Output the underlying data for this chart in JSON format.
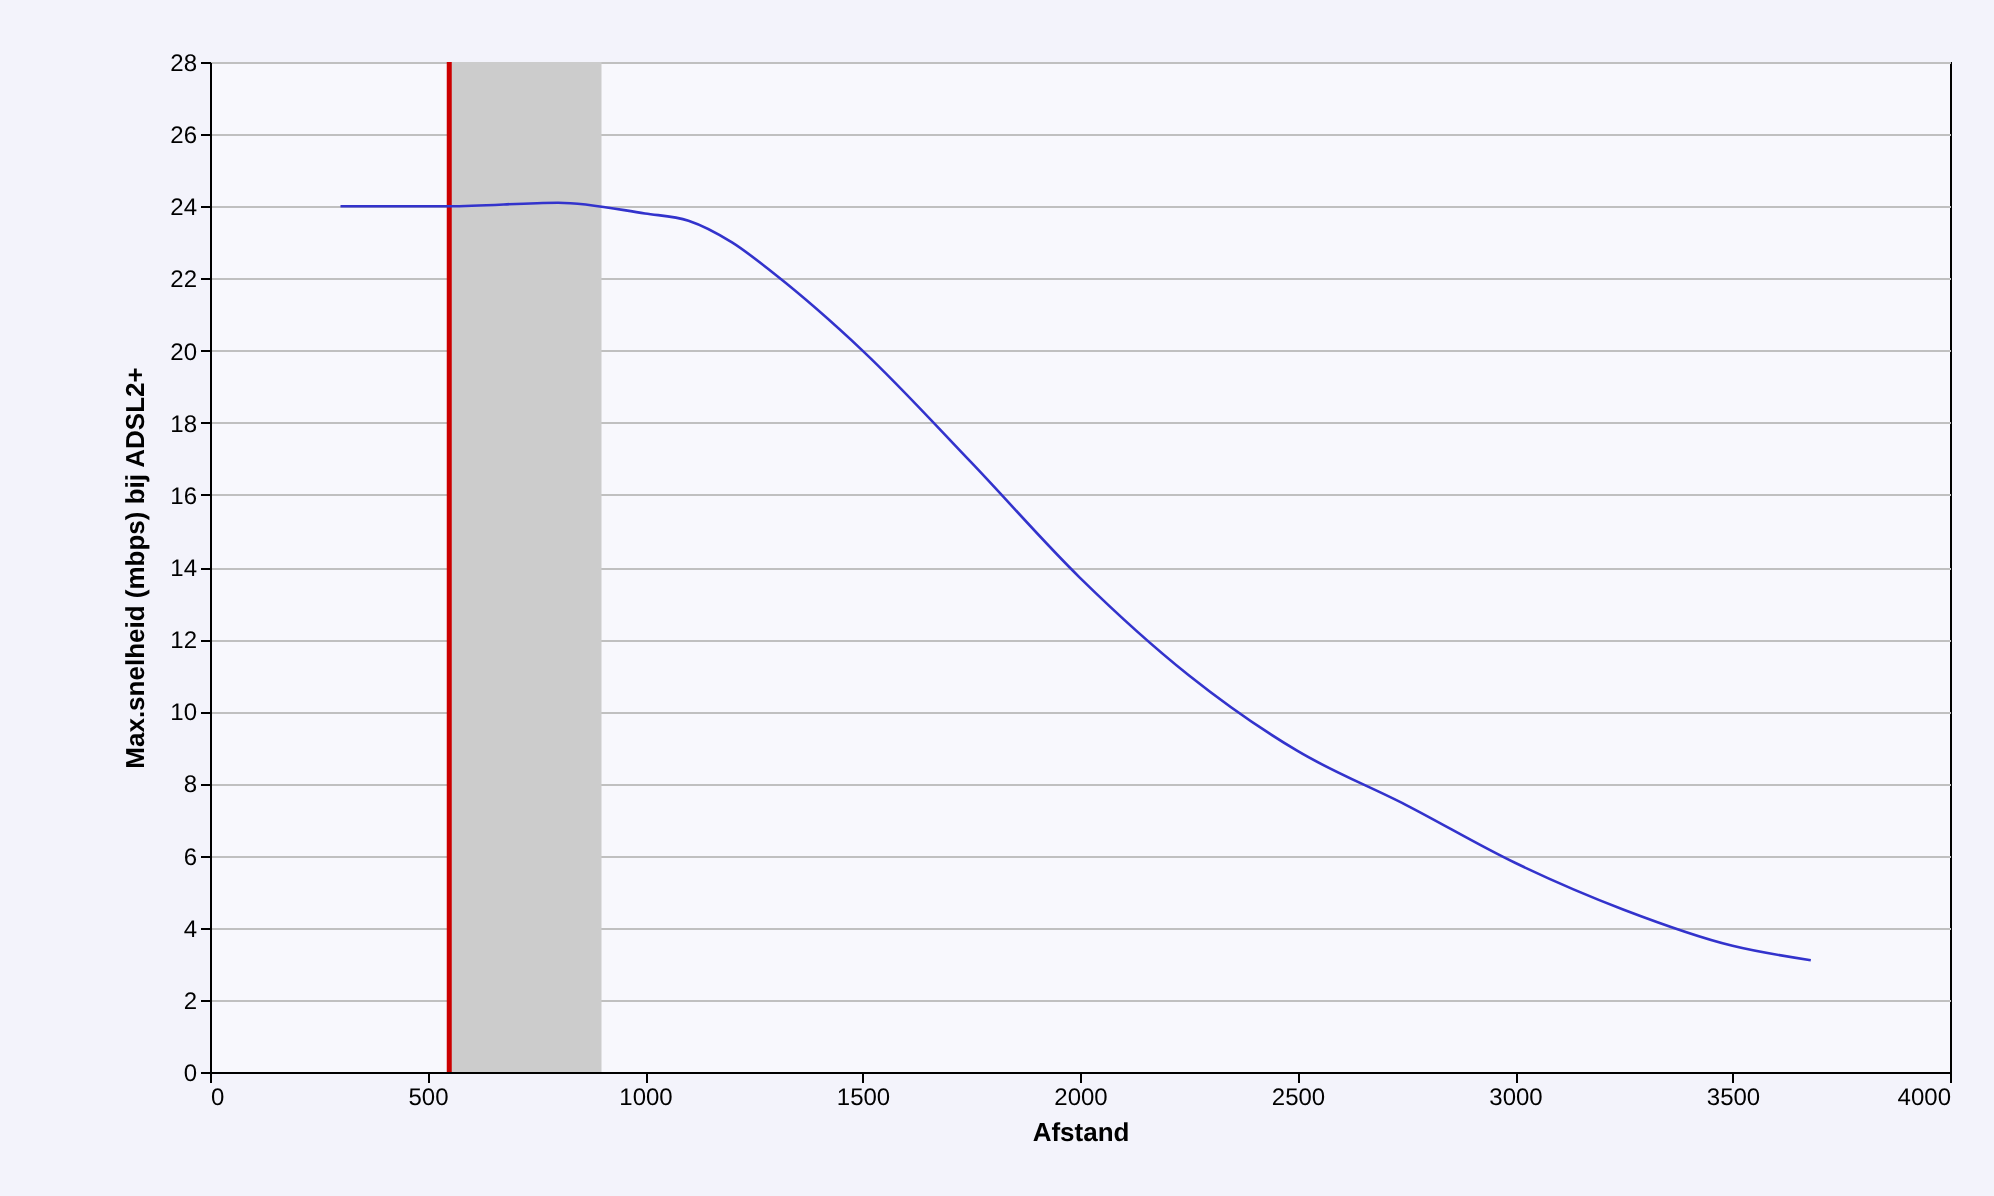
{
  "chart_data": {
    "type": "line",
    "xlabel": "Afstand",
    "ylabel": "Max.snelheid (mbps) bij ADSL2+",
    "x": [
      300,
      550,
      800,
      1000,
      1100,
      1200,
      1300,
      1500,
      1750,
      2000,
      2250,
      2500,
      2750,
      3000,
      3250,
      3500,
      3680
    ],
    "series": [
      {
        "color": "#3333cc",
        "values": [
          24,
          24,
          24.1,
          23.8,
          23.6,
          23,
          22.1,
          20,
          16.9,
          13.7,
          11,
          8.9,
          7.4,
          5.8,
          4.5,
          3.5,
          3.1
        ]
      }
    ],
    "xlim": [
      0,
      4000
    ],
    "xticks": [
      0,
      500,
      1000,
      1500,
      2000,
      2500,
      3000,
      3500,
      4000
    ],
    "ylim": [
      0,
      28
    ],
    "yticks": [
      0,
      2,
      4,
      6,
      8,
      10,
      12,
      14,
      16,
      18,
      20,
      22,
      24,
      26,
      28
    ],
    "grid": "y",
    "marker": "none",
    "line_style": "solid",
    "ref_lines": [
      {
        "axis": "x",
        "value": 550,
        "color": "#cc0000"
      }
    ],
    "bands": [
      {
        "axis": "x",
        "from": 550,
        "to": 900,
        "color": "#cccccc"
      }
    ]
  }
}
